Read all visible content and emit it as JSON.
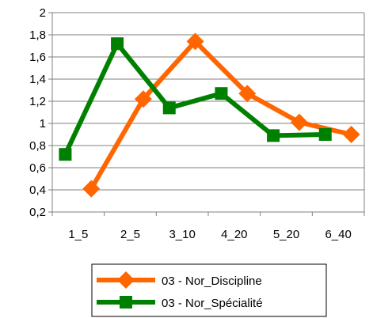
{
  "chart_data": {
    "type": "line",
    "categories": [
      "1_5",
      "2_5",
      "3_10",
      "4_20",
      "5_20",
      "6_40"
    ],
    "series": [
      {
        "name": "03 - Nor_Discipline",
        "color": "#ff6600",
        "marker": "diamond",
        "values": [
          0.41,
          1.22,
          1.74,
          1.27,
          1.01,
          0.9
        ],
        "offset": 0.25
      },
      {
        "name": "03 - Nor_Spécialité",
        "color": "#008000",
        "marker": "square",
        "values": [
          0.72,
          1.72,
          1.14,
          1.27,
          0.89,
          0.9
        ],
        "offset": -0.25
      }
    ],
    "ylim": [
      0.2,
      2
    ],
    "yticks": [
      "0,2",
      "0,4",
      "0,6",
      "0,8",
      "1",
      "1,2",
      "1,4",
      "1,6",
      "1,8",
      "2"
    ],
    "grid": "horizontal",
    "legend": "bottom",
    "title": "",
    "xlabel": "",
    "ylabel": ""
  }
}
